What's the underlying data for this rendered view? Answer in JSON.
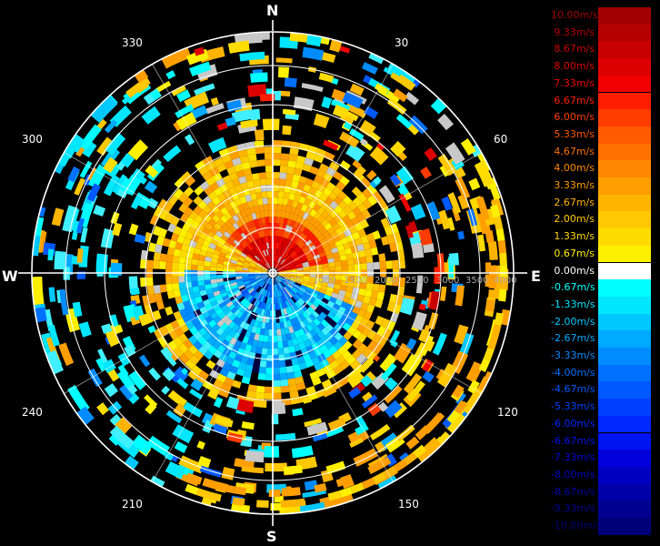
{
  "compass": {
    "north": "N",
    "south": "S",
    "east": "E",
    "west": "W"
  },
  "azimuth_labels": [
    "30",
    "60",
    "120",
    "150",
    "210",
    "240",
    "300",
    "330"
  ],
  "range_labels": [
    "500",
    "1000",
    "1500",
    "2000",
    "2500",
    "3000",
    "3500",
    "4000"
  ],
  "legend": [
    {
      "label": "10.00m/s",
      "color": "#a00000"
    },
    {
      "label": "9.33m/s",
      "color": "#b40000"
    },
    {
      "label": "8.67m/s",
      "color": "#c80000"
    },
    {
      "label": "8.00m/s",
      "color": "#dc0000"
    },
    {
      "label": "7.33m/s",
      "color": "#f00000"
    },
    {
      "label": "6.67m/s",
      "color": "#ff1e00"
    },
    {
      "label": "6.00m/s",
      "color": "#ff3c00"
    },
    {
      "label": "5.33m/s",
      "color": "#ff5a00"
    },
    {
      "label": "4.67m/s",
      "color": "#ff7000"
    },
    {
      "label": "4.00m/s",
      "color": "#ff8800"
    },
    {
      "label": "3.33m/s",
      "color": "#ff9e00"
    },
    {
      "label": "2.67m/s",
      "color": "#ffb400"
    },
    {
      "label": "2.00m/s",
      "color": "#ffc800"
    },
    {
      "label": "1.33m/s",
      "color": "#ffdc00"
    },
    {
      "label": "0.67m/s",
      "color": "#fff000"
    },
    {
      "label": "0.00m/s",
      "color": "#ffffff"
    },
    {
      "label": "-0.67m/s",
      "color": "#00ffff"
    },
    {
      "label": "-1.33m/s",
      "color": "#00e6ff"
    },
    {
      "label": "-2.00m/s",
      "color": "#00c8ff"
    },
    {
      "label": "-2.67m/s",
      "color": "#00aaff"
    },
    {
      "label": "-3.33m/s",
      "color": "#008cff"
    },
    {
      "label": "-4.00m/s",
      "color": "#0070ff"
    },
    {
      "label": "-4.67m/s",
      "color": "#0058ff"
    },
    {
      "label": "-5.33m/s",
      "color": "#0040ff"
    },
    {
      "label": "-6.00m/s",
      "color": "#0028ff"
    },
    {
      "label": "-6.67m/s",
      "color": "#0014f0"
    },
    {
      "label": "-7.33m/s",
      "color": "#0000dc"
    },
    {
      "label": "-8.00m/s",
      "color": "#0000c0"
    },
    {
      "label": "-8.67m/s",
      "color": "#0000a8"
    },
    {
      "label": "-9.33m/s",
      "color": "#000090"
    },
    {
      "label": "-10.00m/s",
      "color": "#000078"
    }
  ]
}
